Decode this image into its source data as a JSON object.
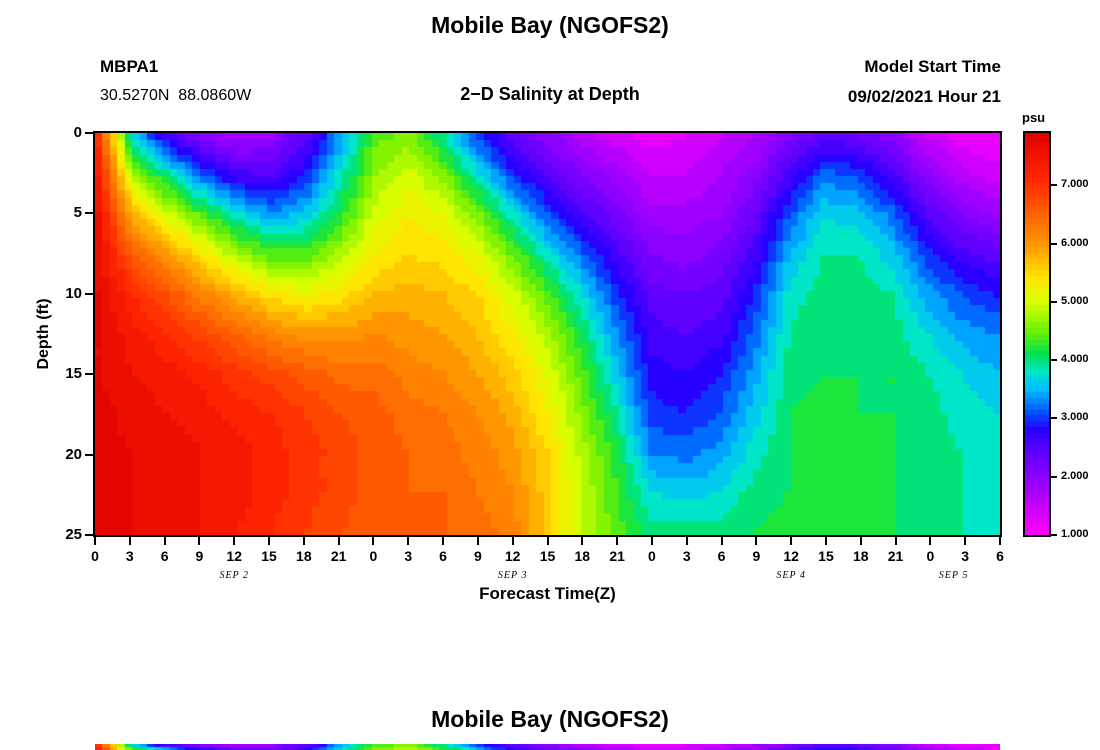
{
  "header": {
    "title": "Mobile Bay (NGOFS2)",
    "station_id": "MBPA1",
    "coordinates": "30.5270N  88.0860W",
    "subtitle": "2−D Salinity at Depth",
    "model_start_label": "Model Start Time",
    "model_start_value": "09/02/2021 Hour 21"
  },
  "footer": {
    "next_title": "Mobile Bay (NGOFS2)"
  },
  "chart_data": {
    "type": "heatmap",
    "title": "2−D Salinity at Depth",
    "xlabel": "Forecast Time(Z)",
    "ylabel": "Depth (ft)",
    "units": "psu",
    "xlim_hours": [
      0,
      78
    ],
    "ylim_depth_ft": [
      0,
      25
    ],
    "x_hours": [
      0,
      3,
      6,
      9,
      12,
      15,
      18,
      21,
      24,
      27,
      30,
      33,
      36,
      39,
      42,
      45,
      48,
      51,
      54,
      57,
      60,
      63,
      66,
      69,
      72,
      75,
      78
    ],
    "x_tick_labels": [
      "0",
      "3",
      "6",
      "9",
      "12",
      "15",
      "18",
      "21",
      "0",
      "3",
      "6",
      "9",
      "12",
      "15",
      "18",
      "21",
      "0",
      "3",
      "6",
      "9",
      "12",
      "15",
      "18",
      "21",
      "0",
      "3",
      "6"
    ],
    "day_labels": [
      {
        "label": "SEP 2",
        "hour": 12
      },
      {
        "label": "SEP 3",
        "hour": 36
      },
      {
        "label": "SEP 4",
        "hour": 60
      },
      {
        "label": "SEP 5",
        "hour": 74
      }
    ],
    "depths_ft": [
      0,
      2.5,
      5,
      7.5,
      10,
      12.5,
      15,
      17.5,
      20,
      22.5,
      25
    ],
    "y_tick_values": [
      0,
      5,
      10,
      15,
      20,
      25
    ],
    "contour_interval_psu": 0.2,
    "values_psu": [
      [
        7.0,
        3.6,
        2.6,
        2.0,
        1.8,
        1.9,
        2.4,
        3.4,
        4.4,
        4.6,
        3.9,
        3.0,
        2.4,
        2.0,
        1.6,
        1.4,
        1.2,
        1.3,
        1.5,
        1.7,
        2.1,
        2.4,
        2.3,
        2.0,
        1.5,
        1.2,
        1.1
      ],
      [
        7.3,
        4.8,
        4.0,
        3.2,
        2.6,
        2.5,
        2.9,
        3.8,
        4.7,
        5.0,
        4.6,
        3.8,
        3.0,
        2.5,
        2.1,
        1.8,
        1.5,
        1.5,
        1.7,
        2.0,
        2.6,
        3.2,
        3.1,
        2.6,
        2.0,
        1.6,
        1.4
      ],
      [
        7.5,
        5.8,
        5.0,
        4.4,
        3.8,
        3.4,
        3.6,
        4.2,
        5.0,
        5.3,
        5.1,
        4.6,
        3.8,
        3.1,
        2.6,
        2.2,
        1.8,
        1.8,
        1.9,
        2.3,
        3.1,
        3.7,
        3.6,
        3.2,
        2.5,
        2.1,
        1.9
      ],
      [
        7.6,
        6.6,
        6.0,
        5.4,
        4.8,
        4.4,
        4.4,
        4.8,
        5.3,
        5.5,
        5.4,
        5.1,
        4.5,
        3.8,
        3.2,
        2.6,
        2.1,
        2.0,
        2.2,
        2.6,
        3.5,
        3.9,
        3.9,
        3.6,
        3.0,
        2.6,
        2.4
      ],
      [
        7.7,
        7.1,
        6.7,
        6.2,
        5.8,
        5.4,
        5.2,
        5.4,
        5.7,
        5.8,
        5.7,
        5.5,
        5.0,
        4.4,
        3.7,
        3.0,
        2.4,
        2.3,
        2.4,
        2.9,
        3.8,
        4.0,
        4.0,
        3.9,
        3.4,
        3.1,
        2.9
      ],
      [
        7.7,
        7.4,
        7.1,
        6.8,
        6.5,
        6.2,
        6.0,
        6.0,
        6.1,
        6.0,
        5.9,
        5.7,
        5.3,
        4.8,
        4.1,
        3.3,
        2.6,
        2.5,
        2.6,
        3.2,
        3.9,
        4.1,
        4.1,
        4.0,
        3.7,
        3.4,
        3.3
      ],
      [
        7.7,
        7.5,
        7.4,
        7.2,
        7.0,
        6.8,
        6.6,
        6.4,
        6.4,
        6.2,
        6.1,
        5.9,
        5.6,
        5.1,
        4.4,
        3.6,
        2.8,
        2.7,
        2.9,
        3.4,
        4.0,
        4.1,
        4.1,
        4.1,
        3.9,
        3.7,
        3.5
      ],
      [
        7.8,
        7.6,
        7.5,
        7.4,
        7.2,
        7.1,
        6.9,
        6.7,
        6.6,
        6.4,
        6.3,
        6.1,
        5.8,
        5.3,
        4.6,
        3.9,
        3.0,
        2.9,
        3.1,
        3.6,
        4.1,
        4.2,
        4.1,
        4.1,
        4.0,
        3.8,
        3.7
      ],
      [
        7.8,
        7.7,
        7.6,
        7.5,
        7.4,
        7.2,
        7.0,
        6.8,
        6.6,
        6.5,
        6.4,
        6.2,
        6.0,
        5.5,
        4.8,
        4.2,
        3.3,
        3.2,
        3.4,
        3.8,
        4.1,
        4.2,
        4.2,
        4.1,
        4.0,
        3.9,
        3.8
      ],
      [
        7.8,
        7.7,
        7.6,
        7.5,
        7.4,
        7.2,
        7.0,
        6.8,
        6.6,
        6.5,
        6.5,
        6.3,
        6.1,
        5.6,
        4.9,
        4.3,
        3.7,
        3.6,
        3.7,
        4.0,
        4.1,
        4.2,
        4.2,
        4.1,
        4.0,
        3.9,
        3.8
      ],
      [
        7.8,
        7.7,
        7.6,
        7.5,
        7.3,
        7.1,
        6.9,
        6.7,
        6.6,
        6.5,
        6.5,
        6.4,
        6.2,
        5.6,
        4.9,
        4.4,
        4.0,
        4.0,
        4.0,
        4.1,
        4.2,
        4.2,
        4.2,
        4.1,
        4.0,
        3.9,
        3.8
      ]
    ],
    "colorbar": {
      "unit_label": "psu",
      "min": 1.0,
      "max": 7.9,
      "tick_values": [
        7,
        6,
        5,
        4,
        3,
        2,
        1
      ],
      "tick_labels": [
        "7.000",
        "6.000",
        "5.000",
        "4.000",
        "3.000",
        "2.000",
        "1.000"
      ],
      "legend_position": "right"
    },
    "colormap_stops": [
      [
        1.0,
        255,
        0,
        255
      ],
      [
        1.8,
        160,
        0,
        255
      ],
      [
        2.4,
        96,
        0,
        255
      ],
      [
        2.8,
        40,
        0,
        255
      ],
      [
        3.1,
        0,
        80,
        255
      ],
      [
        3.5,
        0,
        190,
        255
      ],
      [
        3.8,
        0,
        230,
        200
      ],
      [
        4.1,
        0,
        225,
        80
      ],
      [
        4.5,
        110,
        240,
        0
      ],
      [
        5.0,
        215,
        255,
        0
      ],
      [
        5.4,
        255,
        230,
        0
      ],
      [
        6.0,
        255,
        150,
        0
      ],
      [
        6.6,
        255,
        90,
        0
      ],
      [
        7.1,
        255,
        40,
        0
      ],
      [
        7.9,
        225,
        0,
        0
      ]
    ]
  }
}
